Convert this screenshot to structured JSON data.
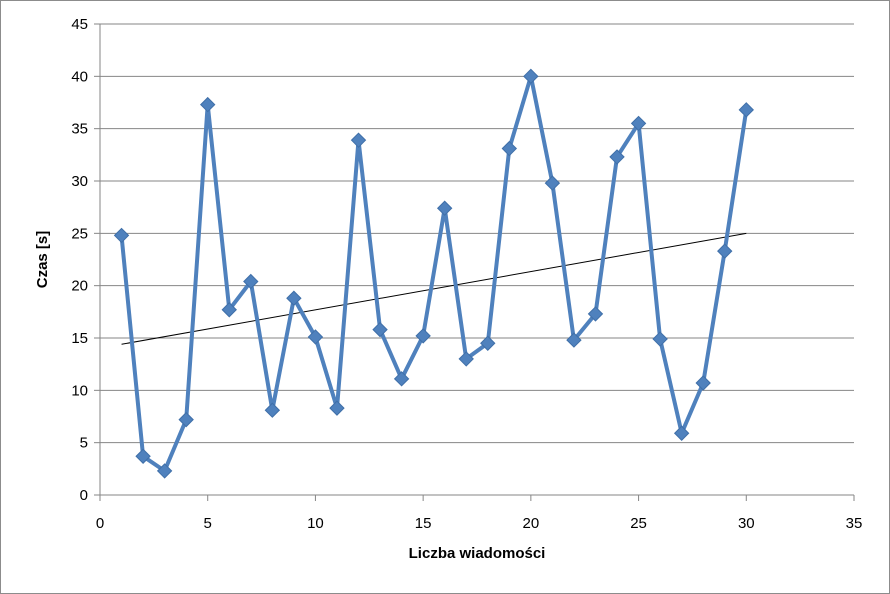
{
  "chart_data": {
    "type": "scatter",
    "title": "",
    "xlabel": "Liczba wiadomości",
    "ylabel": "Czas [s]",
    "xlim": [
      0,
      35
    ],
    "ylim": [
      0,
      45
    ],
    "xticks": [
      "0",
      "5",
      "10",
      "15",
      "20",
      "25",
      "30",
      "35"
    ],
    "yticks": [
      "0",
      "5",
      "10",
      "15",
      "20",
      "25",
      "30",
      "35",
      "40",
      "45"
    ],
    "grid": "horizontal",
    "legend": "none",
    "series": [
      {
        "style": "line-with-diamond-markers",
        "color": "#4f81bd",
        "x": [
          1,
          2,
          3,
          4,
          5,
          6,
          7,
          8,
          9,
          10,
          11,
          12,
          13,
          14,
          15,
          16,
          17,
          18,
          19,
          20,
          21,
          22,
          23,
          24,
          25,
          26,
          27,
          28,
          29,
          30
        ],
        "y": [
          24.8,
          3.7,
          2.3,
          7.2,
          37.3,
          17.7,
          20.4,
          8.1,
          18.8,
          15.1,
          8.3,
          33.9,
          15.8,
          11.1,
          15.2,
          27.4,
          13.0,
          14.5,
          33.1,
          40.0,
          29.8,
          14.8,
          17.3,
          32.3,
          35.5,
          14.9,
          5.9,
          10.7,
          23.3,
          36.8
        ]
      }
    ],
    "trendline": {
      "type": "linear",
      "color": "#000000",
      "x": [
        1,
        30
      ],
      "y": [
        14.4,
        25.0
      ]
    }
  }
}
